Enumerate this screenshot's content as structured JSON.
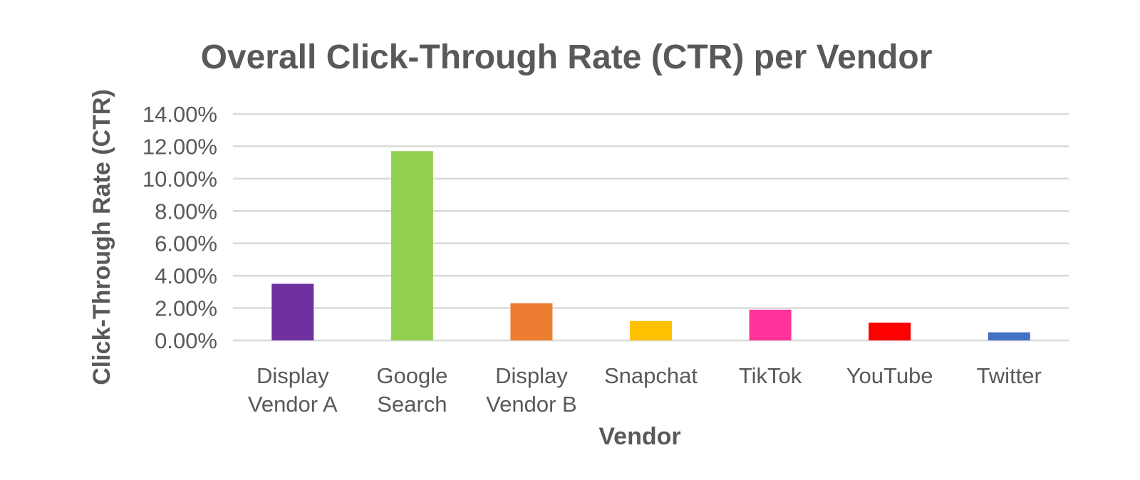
{
  "chart_data": {
    "type": "bar",
    "title": "Overall Click-Through Rate (CTR) per Vendor",
    "xlabel": "Vendor",
    "ylabel": "Click-Through Rate (CTR)",
    "categories": [
      [
        "Display",
        "Vendor A"
      ],
      [
        "Google",
        "Search"
      ],
      [
        "Display",
        "Vendor B"
      ],
      [
        "Snapchat"
      ],
      [
        "TikTok"
      ],
      [
        "YouTube"
      ],
      [
        "Twitter"
      ]
    ],
    "values": [
      0.035,
      0.117,
      0.023,
      0.012,
      0.019,
      0.011,
      0.005
    ],
    "colors": [
      "#7030A0",
      "#92D050",
      "#ED7D31",
      "#FFC000",
      "#FF3399",
      "#FF0000",
      "#4472C4"
    ],
    "ylim": [
      0,
      0.14
    ],
    "yticks": [
      0,
      0.02,
      0.04,
      0.06,
      0.08,
      0.1,
      0.12,
      0.14
    ],
    "ytick_labels": [
      "0.00%",
      "2.00%",
      "4.00%",
      "6.00%",
      "8.00%",
      "10.00%",
      "12.00%",
      "14.00%"
    ],
    "grid": true,
    "legend": "none"
  }
}
